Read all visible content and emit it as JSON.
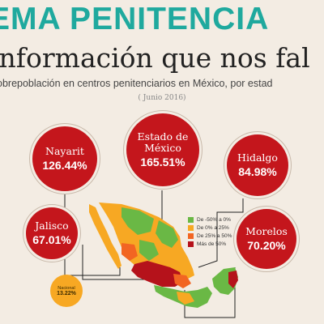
{
  "header": {
    "title": "EMA PENITENCIA",
    "subtitle": "información que nos fal",
    "description": "obrepoblación en centros penitenciarios en México, por estad",
    "date": "( Junio 2016)"
  },
  "states": [
    {
      "key": "nayarit",
      "name": "Nayarit",
      "value": "126.44%"
    },
    {
      "key": "edomex",
      "name": "Estado de México",
      "value": "165.51%"
    },
    {
      "key": "hidalgo",
      "name": "Hidalgo",
      "value": "84.98%"
    },
    {
      "key": "jalisco",
      "name": "Jalisco",
      "value": "67.01%"
    },
    {
      "key": "morelos",
      "name": "Morelos",
      "value": "70.20%"
    }
  ],
  "national": {
    "name": "Nacional",
    "value": "13.22%"
  },
  "legend": [
    {
      "label": "De -50% a 0%",
      "color": "#6ab845"
    },
    {
      "label": "De 0% a 25%",
      "color": "#f7a823"
    },
    {
      "label": "De 25% a 50%",
      "color": "#f26522"
    },
    {
      "label": "Más de 50%",
      "color": "#b5121b"
    }
  ],
  "colors": {
    "accent": "#1fa99e",
    "bubble": "#c4161c",
    "background": "#f3ece3"
  }
}
